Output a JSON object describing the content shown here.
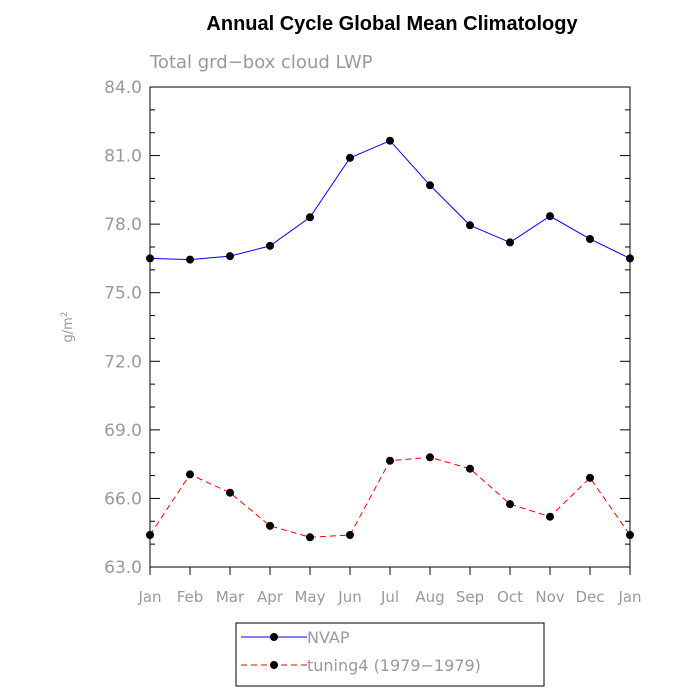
{
  "chart_data": {
    "type": "line",
    "title": "Annual Cycle Global Mean Climatology",
    "subtitle": "Total grd−box cloud LWP",
    "xlabel": "",
    "ylabel_base": "g/m",
    "ylabel_sup": "2",
    "categories": [
      "Jan",
      "Feb",
      "Mar",
      "Apr",
      "May",
      "Jun",
      "Jul",
      "Aug",
      "Sep",
      "Oct",
      "Nov",
      "Dec",
      "Jan"
    ],
    "ylim": [
      63.0,
      84.0
    ],
    "yticks": [
      "63.0",
      "66.0",
      "69.0",
      "72.0",
      "75.0",
      "78.0",
      "81.0",
      "84.0"
    ],
    "grid": false,
    "legend_position": "bottom",
    "series": [
      {
        "name": "NVAP",
        "color": "#0000ff",
        "dashed": false,
        "values": [
          76.5,
          76.45,
          76.6,
          77.05,
          78.3,
          80.9,
          81.65,
          79.7,
          77.95,
          77.2,
          78.35,
          77.35,
          76.5
        ]
      },
      {
        "name": "tuning4 (1979−1979)",
        "color": "#ff0000",
        "dashed": true,
        "values": [
          64.4,
          67.05,
          66.25,
          64.8,
          64.3,
          64.4,
          67.65,
          67.8,
          67.3,
          65.75,
          65.2,
          66.9,
          64.4
        ]
      }
    ]
  }
}
